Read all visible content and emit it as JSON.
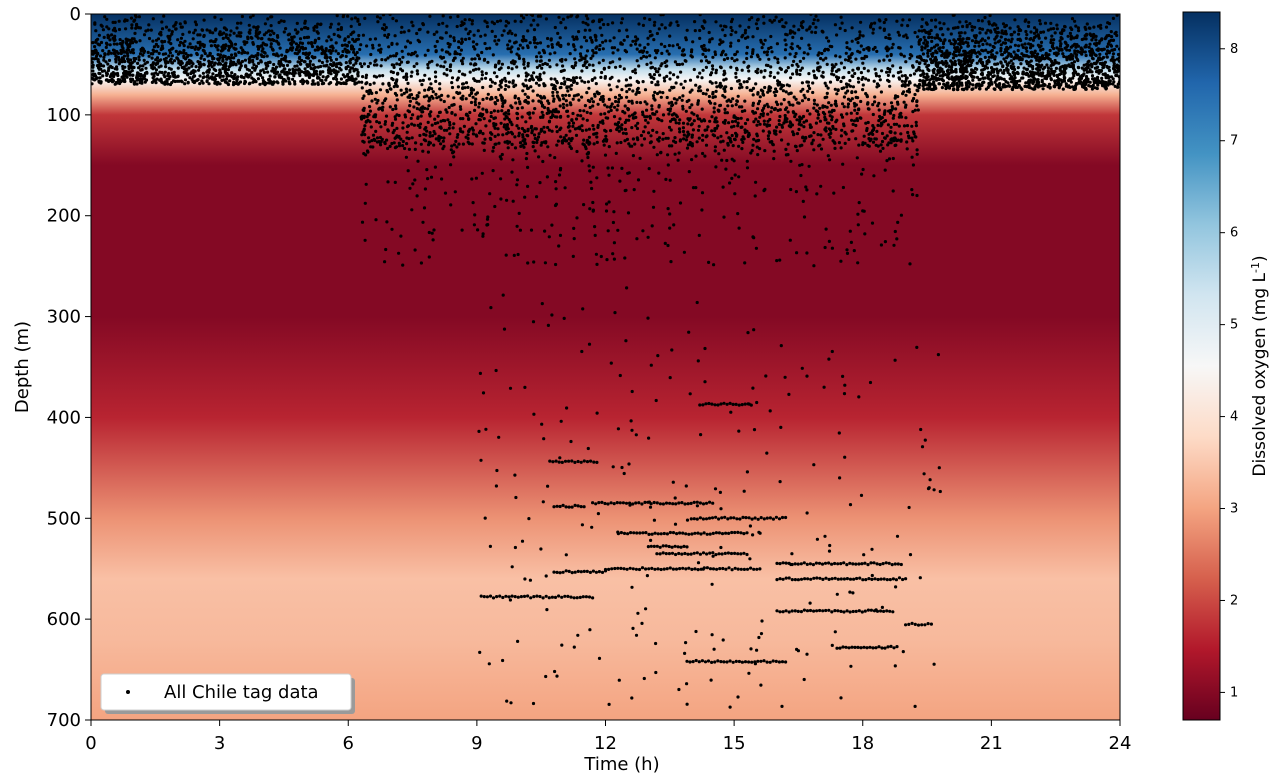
{
  "chart_data": {
    "type": "scatter",
    "xlabel": "Time  (h)",
    "ylabel": "Depth (m)",
    "xlim": [
      0,
      24
    ],
    "ylim": [
      0,
      700
    ],
    "y_inverted": true,
    "xticks": [
      0,
      3,
      6,
      9,
      12,
      15,
      18,
      21,
      24
    ],
    "yticks": [
      0,
      100,
      200,
      300,
      400,
      500,
      600,
      700
    ],
    "grid": false,
    "legend_position": "lower-left",
    "series": [
      {
        "name": "All Chile tag data",
        "color": "#000000",
        "marker": "dot",
        "clusters": [
          {
            "t_start": 0,
            "t_end": 6.3,
            "depth_min": 0,
            "depth_max": 70
          },
          {
            "t_start": 6.3,
            "t_end": 19.3,
            "depth_min": 0,
            "depth_max": 130
          },
          {
            "t_start": 6.3,
            "t_end": 19.3,
            "depth_min": 130,
            "depth_max": 250
          },
          {
            "t_start": 19.3,
            "t_end": 24,
            "depth_min": 0,
            "depth_max": 75
          }
        ],
        "horizontal_runs": [
          {
            "t_start": 9.1,
            "t_end": 11.7,
            "depth": 578
          },
          {
            "t_start": 10.7,
            "t_end": 11.8,
            "depth": 444
          },
          {
            "t_start": 10.8,
            "t_end": 12.0,
            "depth": 553
          },
          {
            "t_start": 10.8,
            "t_end": 11.5,
            "depth": 488
          },
          {
            "t_start": 11.7,
            "t_end": 14.5,
            "depth": 485
          },
          {
            "t_start": 12.0,
            "t_end": 15.6,
            "depth": 550
          },
          {
            "t_start": 12.3,
            "t_end": 15.3,
            "depth": 515
          },
          {
            "t_start": 13.0,
            "t_end": 13.9,
            "depth": 528
          },
          {
            "t_start": 13.2,
            "t_end": 15.3,
            "depth": 535
          },
          {
            "t_start": 14.0,
            "t_end": 16.2,
            "depth": 500
          },
          {
            "t_start": 14.2,
            "t_end": 15.4,
            "depth": 387
          },
          {
            "t_start": 13.9,
            "t_end": 16.2,
            "depth": 642
          },
          {
            "t_start": 16.0,
            "t_end": 18.9,
            "depth": 545
          },
          {
            "t_start": 16.0,
            "t_end": 19.0,
            "depth": 560
          },
          {
            "t_start": 16.0,
            "t_end": 18.7,
            "depth": 592
          },
          {
            "t_start": 17.4,
            "t_end": 18.8,
            "depth": 628
          },
          {
            "t_start": 19.0,
            "t_end": 19.6,
            "depth": 605
          }
        ]
      }
    ],
    "background": {
      "type": "heatmap",
      "quantity": "Dissolved oxygen",
      "units": "mg L-1",
      "profile": [
        {
          "depth": 0,
          "value": 8.4
        },
        {
          "depth": 40,
          "value": 7.5
        },
        {
          "depth": 55,
          "value": 5.5
        },
        {
          "depth": 65,
          "value": 4.5
        },
        {
          "depth": 80,
          "value": 3.2
        },
        {
          "depth": 100,
          "value": 1.8
        },
        {
          "depth": 150,
          "value": 1.0
        },
        {
          "depth": 300,
          "value": 1.0
        },
        {
          "depth": 400,
          "value": 1.6
        },
        {
          "depth": 500,
          "value": 2.8
        },
        {
          "depth": 560,
          "value": 3.4
        },
        {
          "depth": 620,
          "value": 3.3
        },
        {
          "depth": 700,
          "value": 3.0
        }
      ]
    },
    "colorbar": {
      "label_main": "Dissolved oxygen (mg L",
      "label_sup": "-1",
      "label_end": ")",
      "range": [
        0.7,
        8.4
      ],
      "ticks": [
        1,
        2,
        3,
        4,
        5,
        6,
        7,
        8
      ],
      "colormap": "RdBu",
      "colors": [
        "#67001f",
        "#b2182b",
        "#d6604d",
        "#f4a582",
        "#fddbc7",
        "#f7f7f7",
        "#d1e5f0",
        "#92c5de",
        "#4393c3",
        "#2166ac",
        "#053061"
      ]
    }
  }
}
